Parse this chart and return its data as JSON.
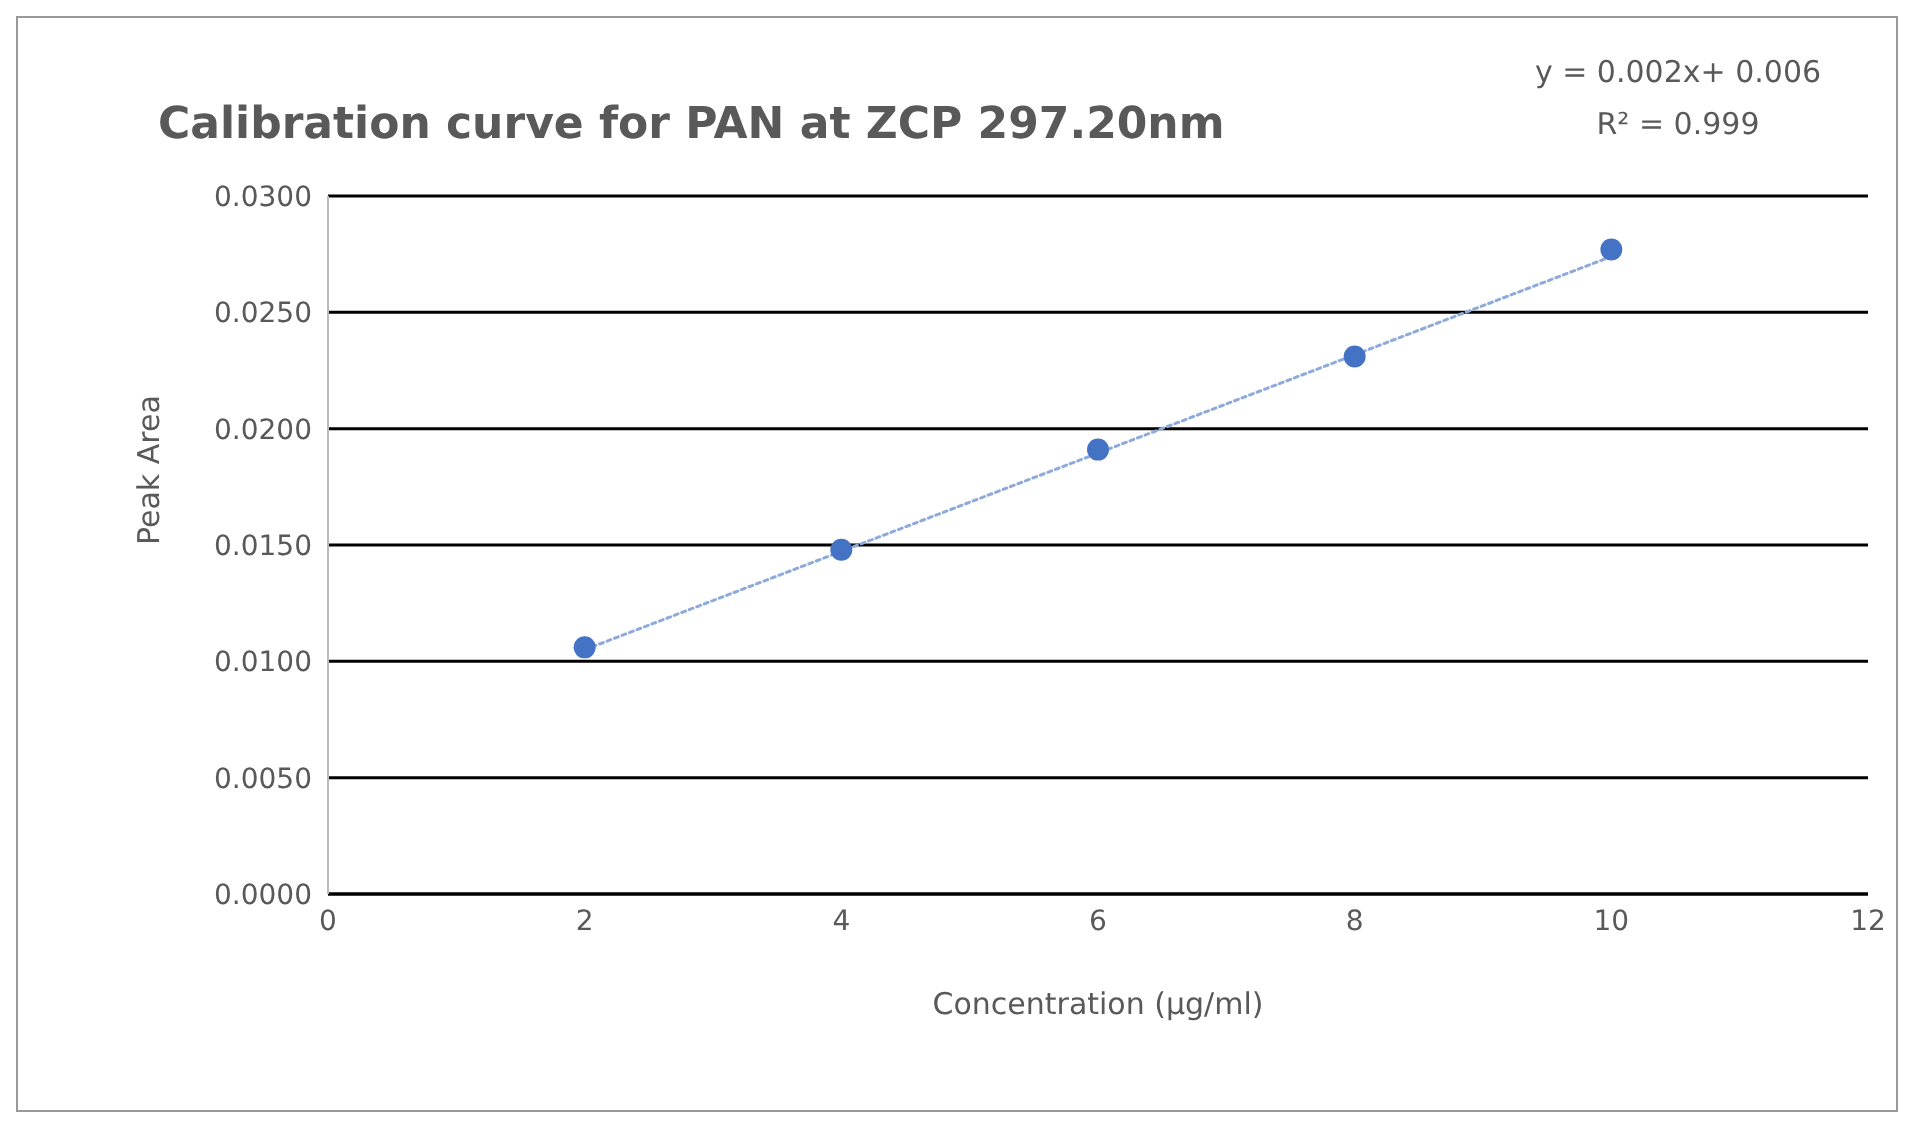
{
  "chart_data": {
    "type": "scatter",
    "title": "Calibration curve for PAN at ZCP 297.20nm",
    "xlabel": "Concentration (µg/ml)",
    "ylabel": "Peak Area",
    "annotations": [
      "y = 0.002x+ 0.006",
      "R² = 0.999"
    ],
    "x": [
      2,
      4,
      6,
      8,
      10
    ],
    "series": [
      {
        "color": "#4472c4",
        "values": [
          0.0106,
          0.0148,
          0.0191,
          0.0231,
          0.0277
        ],
        "marker": "circle"
      },
      {
        "type": "line",
        "color": "#8eaadb",
        "x": [
          2,
          10
        ],
        "values": [
          0.0105,
          0.0274
        ],
        "line_style": "dotted",
        "marker": "none"
      }
    ],
    "xlim": [
      0,
      12
    ],
    "xticks": [
      0,
      2,
      4,
      6,
      8,
      10,
      12
    ],
    "ylim": [
      0,
      0.03
    ],
    "yticks": [
      {
        "value": 0,
        "label": "0.0000"
      },
      {
        "value": 0.005,
        "label": "0.0050"
      },
      {
        "value": 0.01,
        "label": "0.0100"
      },
      {
        "value": 0.015,
        "label": "0.0150"
      },
      {
        "value": 0.02,
        "label": "0.0200"
      },
      {
        "value": 0.025,
        "label": "0.0250"
      },
      {
        "value": 0.03,
        "label": "0.0300"
      }
    ],
    "grid": "y",
    "legend": false
  }
}
